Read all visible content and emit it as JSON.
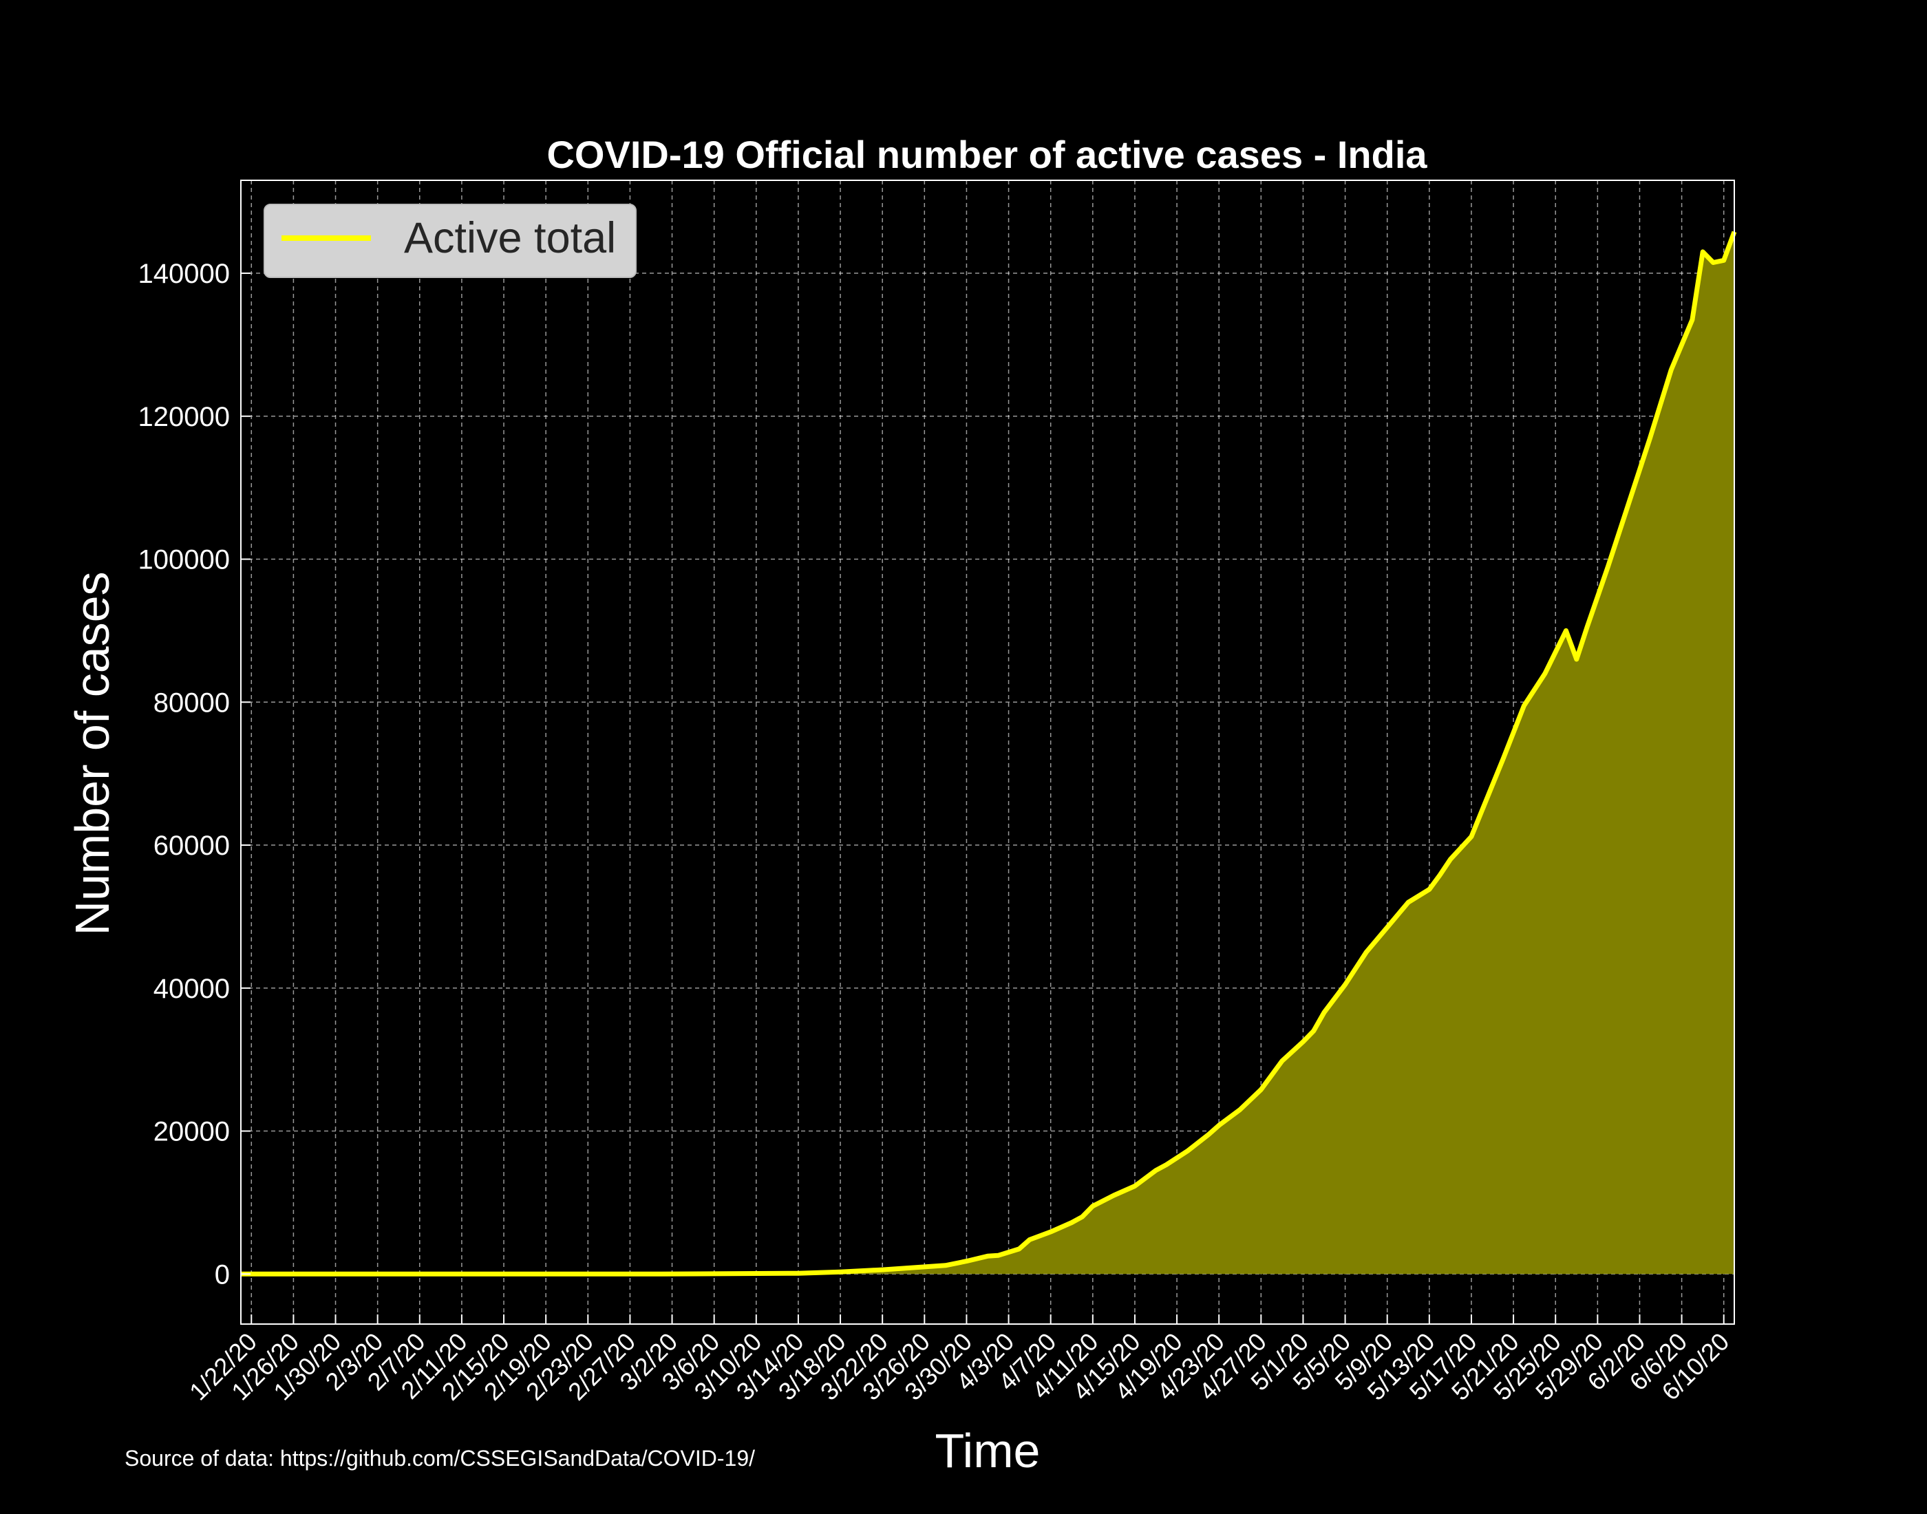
{
  "chart_data": {
    "type": "area",
    "title": "COVID-19 Official number of active cases - India",
    "xlabel": "Time",
    "ylabel": "Number of cases",
    "source_note": "Source of data: https://github.com/CSSEGISandData/COVID-19/",
    "ylim": [
      -7000,
      153000
    ],
    "xlim": [
      "1/22/20",
      "6/11/20"
    ],
    "grid": true,
    "legend_position": "top-left",
    "colors": {
      "line": "#ffff00",
      "fill": "#808000",
      "background": "#000000",
      "legend_bg": "#d3d3d3"
    },
    "y_ticks": [
      0,
      20000,
      40000,
      60000,
      80000,
      100000,
      120000,
      140000
    ],
    "y_tick_labels": [
      "0",
      "20000",
      "40000",
      "60000",
      "80000",
      "100000",
      "120000",
      "140000"
    ],
    "x_tick_labels": [
      "1/22/20",
      "1/26/20",
      "1/30/20",
      "2/3/20",
      "2/7/20",
      "2/11/20",
      "2/15/20",
      "2/19/20",
      "2/23/20",
      "2/27/20",
      "3/2/20",
      "3/6/20",
      "3/10/20",
      "3/14/20",
      "3/18/20",
      "3/22/20",
      "3/26/20",
      "3/30/20",
      "4/3/20",
      "4/7/20",
      "4/11/20",
      "4/15/20",
      "4/19/20",
      "4/23/20",
      "4/27/20",
      "5/1/20",
      "5/5/20",
      "5/9/20",
      "5/13/20",
      "5/17/20",
      "5/21/20",
      "5/25/20",
      "5/29/20",
      "6/2/20",
      "6/6/20",
      "6/10/20"
    ],
    "series": [
      {
        "name": "Active total",
        "x": [
          "1/22/20",
          "3/1/20",
          "3/14/20",
          "3/18/20",
          "3/22/20",
          "3/26/20",
          "3/28/20",
          "3/30/20",
          "4/1/20",
          "4/2/20",
          "4/4/20",
          "4/5/20",
          "4/7/20",
          "4/9/20",
          "4/10/20",
          "4/11/20",
          "4/13/20",
          "4/15/20",
          "4/17/20",
          "4/18/20",
          "4/20/20",
          "4/22/20",
          "4/23/20",
          "4/25/20",
          "4/27/20",
          "4/29/20",
          "5/1/20",
          "5/2/20",
          "5/3/20",
          "5/5/20",
          "5/7/20",
          "5/9/20",
          "5/11/20",
          "5/13/20",
          "5/14/20",
          "5/15/20",
          "5/17/20",
          "5/18/20",
          "5/20/20",
          "5/22/20",
          "5/24/20",
          "5/26/20",
          "5/27/20",
          "5/28/20",
          "5/30/20",
          "6/1/20",
          "6/3/20",
          "6/5/20",
          "6/7/20",
          "6/8/20",
          "6/9/20",
          "6/10/20",
          "6/11/20"
        ],
        "y": [
          0,
          3,
          100,
          300,
          600,
          1000,
          1200,
          1800,
          2500,
          2600,
          3500,
          4800,
          5900,
          7200,
          8000,
          9500,
          11000,
          12300,
          14500,
          15300,
          17200,
          19500,
          20800,
          23000,
          25800,
          29800,
          32500,
          34000,
          36600,
          40500,
          45000,
          48500,
          52000,
          53800,
          55800,
          58000,
          61200,
          64800,
          72000,
          79500,
          84000,
          90000,
          86000,
          90500,
          99000,
          108000,
          117000,
          126500,
          133500,
          143000,
          141500,
          141800,
          145800
        ]
      }
    ]
  }
}
